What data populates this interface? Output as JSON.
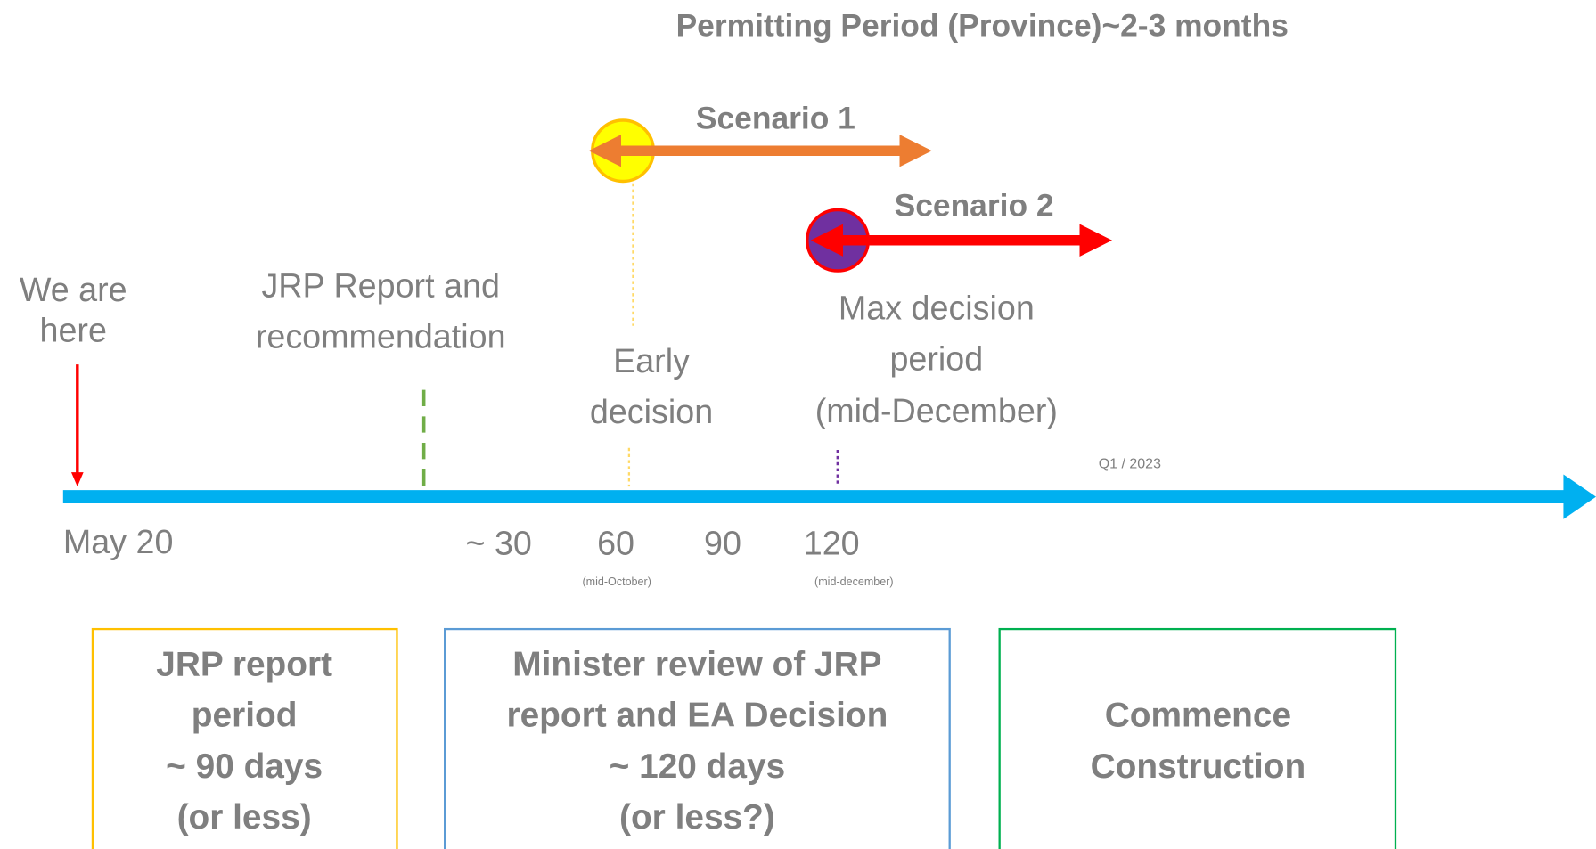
{
  "title": "Permitting Period (Province)~2-3 months",
  "scenarios": [
    "Scenario 1",
    "Scenario 2"
  ],
  "markers": {
    "we_are_here": [
      "We are",
      "here"
    ],
    "jrp_report": [
      "JRP Report and",
      "recommendation"
    ],
    "early_decision": [
      "Early",
      "decision"
    ],
    "max_decision": [
      "Max decision",
      "period",
      "(mid-December)"
    ],
    "q1": "Q1 / 2023"
  },
  "timeline": {
    "start": "May 20",
    "ticks": [
      "~ 30",
      "60",
      "90",
      "120"
    ],
    "notes": [
      "(mid-October)",
      "(mid-december)"
    ]
  },
  "boxes": [
    [
      "JRP report",
      "period",
      "~ 90 days",
      "(or less)"
    ],
    [
      "Minister review of JRP",
      "report and EA Decision",
      "~ 120 days",
      "(or less?)"
    ],
    [
      "Commence",
      "Construction"
    ]
  ]
}
